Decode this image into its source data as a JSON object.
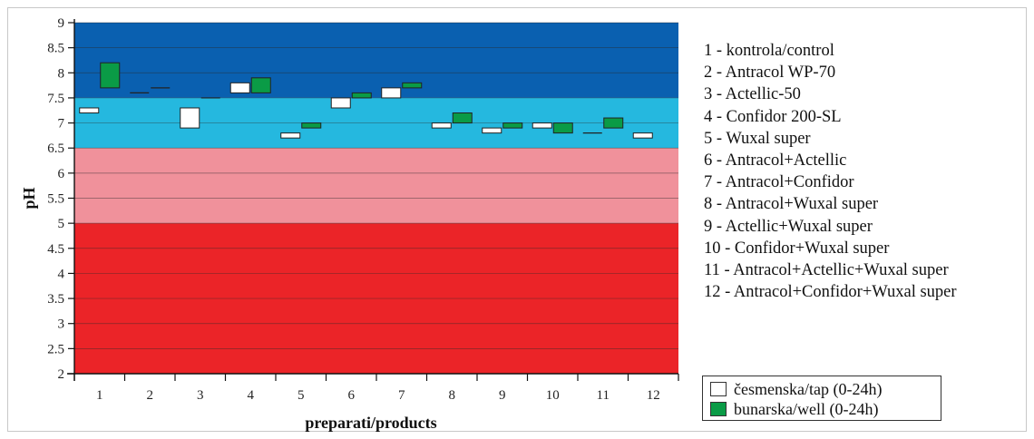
{
  "chart_data": {
    "type": "box",
    "xlabel": "preparati/products",
    "ylabel": "pH",
    "ylim": [
      2,
      9
    ],
    "y_ticks": [
      "2",
      "2.5",
      "3",
      "3.5",
      "4",
      "4.5",
      "5",
      "5.5",
      "6",
      "6.5",
      "7",
      "7.5",
      "8",
      "8.5",
      "9"
    ],
    "categories": [
      "1",
      "2",
      "3",
      "4",
      "5",
      "6",
      "7",
      "8",
      "9",
      "10",
      "11",
      "12"
    ],
    "background_bands": [
      {
        "from": 7.5,
        "to": 9.0,
        "color": "#0a60b0"
      },
      {
        "from": 6.5,
        "to": 7.5,
        "color": "#25b8df"
      },
      {
        "from": 5.0,
        "to": 6.5,
        "color": "#f0919b"
      },
      {
        "from": 2.0,
        "to": 5.0,
        "color": "#eb2428"
      }
    ],
    "series": [
      {
        "name": "česmenska/tap (0-24h)",
        "color": "#ffffff",
        "ranges": [
          [
            7.2,
            7.3
          ],
          [
            7.6,
            7.6
          ],
          [
            6.9,
            7.3
          ],
          [
            7.6,
            7.8
          ],
          [
            6.7,
            6.8
          ],
          [
            7.3,
            7.5
          ],
          [
            7.5,
            7.7
          ],
          [
            6.9,
            7.0
          ],
          [
            6.8,
            6.9
          ],
          [
            6.9,
            7.0
          ],
          [
            6.8,
            6.8
          ],
          [
            6.7,
            6.8
          ]
        ]
      },
      {
        "name": "bunarska/well (0-24h)",
        "color": "#0a9b46",
        "ranges": [
          [
            7.7,
            8.2
          ],
          [
            7.7,
            7.7
          ],
          [
            7.5,
            7.5
          ],
          [
            7.6,
            7.9
          ],
          [
            6.9,
            7.0
          ],
          [
            7.5,
            7.6
          ],
          [
            7.7,
            7.8
          ],
          [
            7.0,
            7.2
          ],
          [
            6.9,
            7.0
          ],
          [
            6.8,
            7.0
          ],
          [
            6.9,
            7.1
          ],
          null
        ]
      }
    ],
    "legend_title_items": [
      "1 - kontrola/control",
      "2 - Antracol WP-70",
      "3 - Actellic-50",
      "4 - Confidor 200-SL",
      "5 - Wuxal super",
      "6 - Antracol+Actellic",
      "7 - Antracol+Confidor",
      "8 - Antracol+Wuxal super",
      "9 - Actellic+Wuxal super",
      "10 - Confidor+Wuxal super",
      "11 - Antracol+Actellic+Wuxal super",
      "12 - Antracol+Confidor+Wuxal super"
    ],
    "grid": true,
    "legend_position": "right"
  }
}
